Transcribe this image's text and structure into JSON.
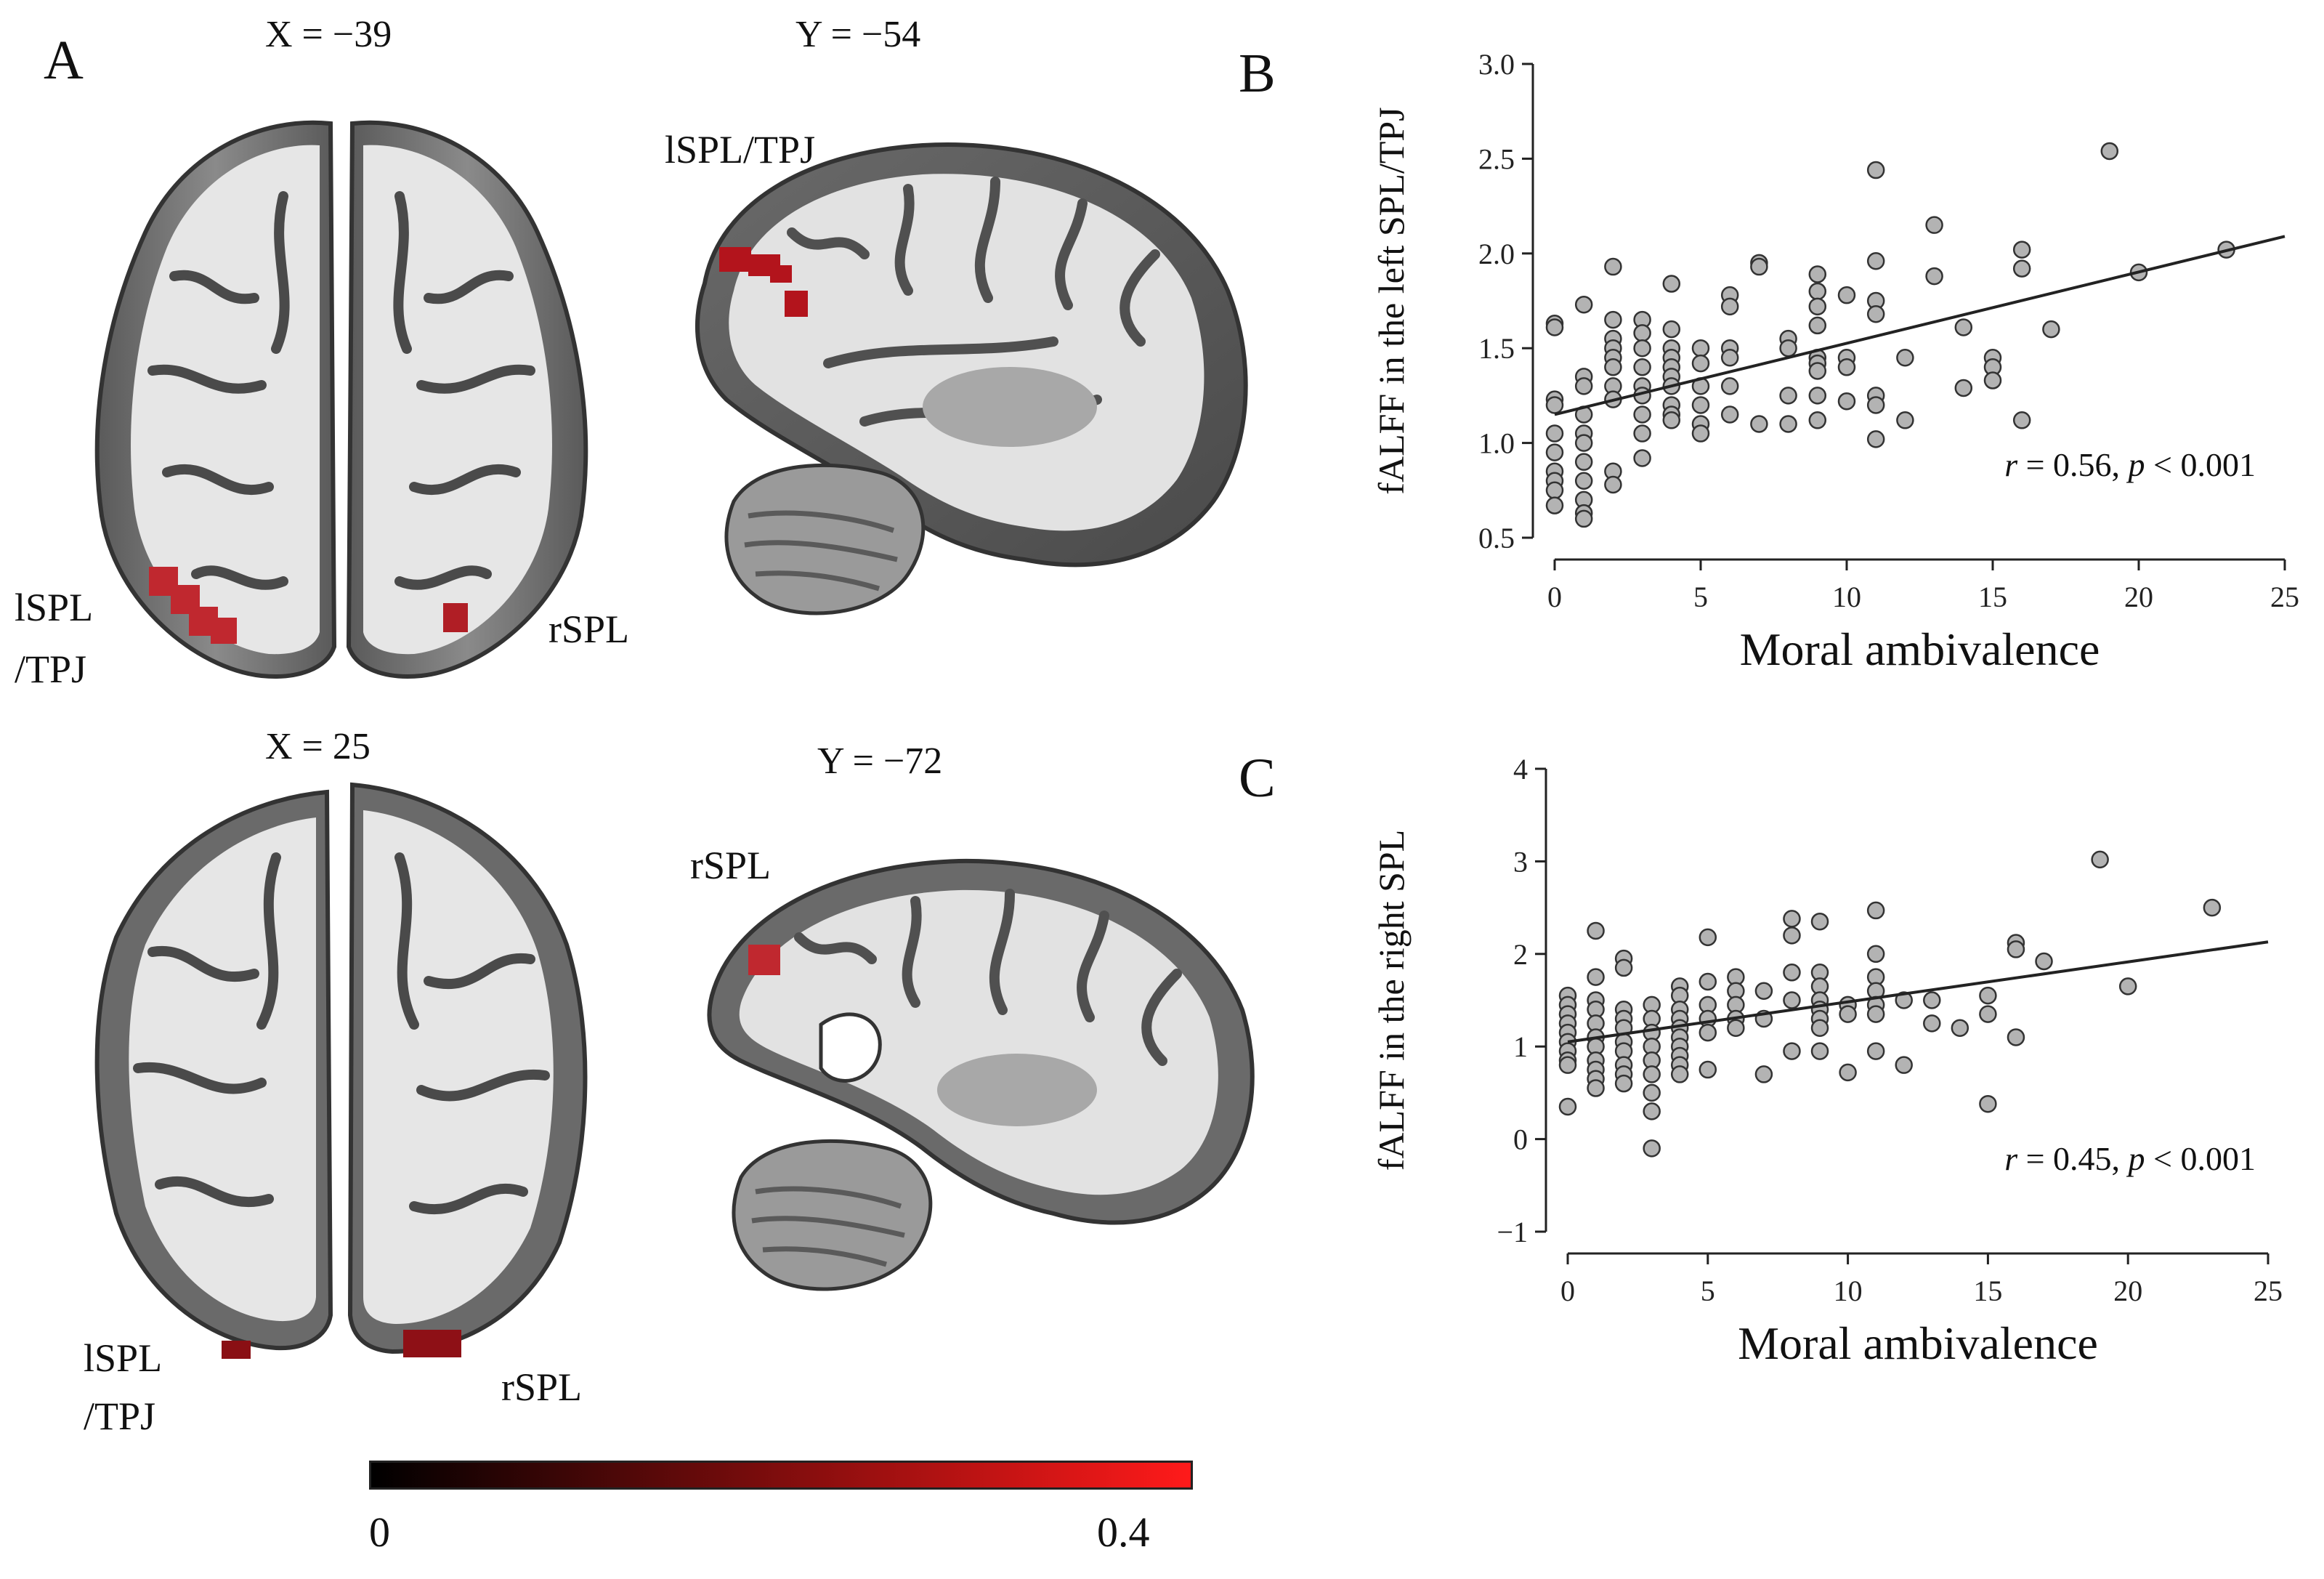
{
  "panels": {
    "a": {
      "letter": "A",
      "slices": {
        "top_left": "X = −39",
        "top_right": "Y = −54",
        "bottom_left": "X = 25",
        "bottom_right": "Y = −72"
      },
      "labels": {
        "lspl_tpj_top_axial_1": "lSPL",
        "lspl_tpj_top_axial_2": "/TPJ",
        "rspl_top_axial": "rSPL",
        "lspl_tpj_top_sagittal": "lSPL/TPJ",
        "rspl_bottom_sagittal": "rSPL",
        "lspl_tpj_bottom_axial_1": "lSPL",
        "lspl_tpj_bottom_axial_2": "/TPJ",
        "rspl_bottom_axial": "rSPL"
      },
      "colorbar": {
        "min": "0",
        "max": "0.4",
        "color_low": "#000000",
        "color_high": "#ff1a1a"
      }
    },
    "b": {
      "letter": "B"
    },
    "c": {
      "letter": "C"
    }
  },
  "chart_data": [
    {
      "type": "scatter",
      "panel": "B",
      "xlabel": "Moral ambivalence",
      "ylabel": "fALFF in the left SPL/TPJ",
      "xlim": [
        0,
        25
      ],
      "ylim": [
        0.5,
        3.0
      ],
      "xticks": [
        "0",
        "5",
        "10",
        "15",
        "20",
        "25"
      ],
      "yticks": [
        "0.5",
        "1.0",
        "1.5",
        "2.0",
        "2.5",
        "3.0"
      ],
      "annotation": {
        "r_symbol": "r",
        "r_text": " = 0.56, ",
        "p_symbol": "p",
        "p_text": " < 0.001"
      },
      "fit_line": {
        "x": [
          0,
          25
        ],
        "y": [
          1.15,
          2.09
        ]
      },
      "x": [
        0,
        0,
        0,
        0,
        0,
        0,
        0,
        0,
        0,
        0,
        1,
        1,
        1,
        1,
        1,
        1,
        1,
        1,
        1,
        1,
        1,
        2,
        2,
        2,
        2,
        2,
        2,
        2,
        2,
        2,
        2,
        3,
        3,
        3,
        3,
        3,
        3,
        3,
        3,
        3,
        4,
        4,
        4,
        4,
        4,
        4,
        4,
        4,
        4,
        4,
        5,
        5,
        5,
        5,
        5,
        5,
        6,
        6,
        6,
        6,
        6,
        6,
        7,
        7,
        7,
        8,
        8,
        8,
        8,
        9,
        9,
        9,
        9,
        9,
        9,
        9,
        9,
        9,
        10,
        10,
        10,
        10,
        11,
        11,
        11,
        11,
        11,
        11,
        11,
        12,
        12,
        13,
        13,
        14,
        14,
        15,
        15,
        15,
        16,
        16,
        16,
        17,
        19,
        20,
        23
      ],
      "y": [
        1.63,
        1.61,
        1.23,
        1.2,
        1.05,
        0.95,
        0.85,
        0.8,
        0.75,
        0.67,
        1.73,
        1.35,
        1.3,
        1.15,
        1.05,
        1.0,
        0.9,
        0.8,
        0.7,
        0.63,
        0.6,
        1.93,
        1.65,
        1.55,
        1.5,
        1.45,
        1.4,
        1.3,
        1.23,
        0.85,
        0.78,
        1.65,
        1.58,
        1.5,
        1.4,
        1.3,
        1.25,
        1.15,
        1.05,
        0.92,
        1.84,
        1.6,
        1.5,
        1.45,
        1.4,
        1.35,
        1.3,
        1.2,
        1.15,
        1.12,
        1.5,
        1.42,
        1.3,
        1.2,
        1.1,
        1.05,
        1.78,
        1.72,
        1.5,
        1.45,
        1.3,
        1.15,
        1.95,
        1.93,
        1.1,
        1.55,
        1.5,
        1.25,
        1.1,
        1.89,
        1.8,
        1.72,
        1.62,
        1.45,
        1.42,
        1.38,
        1.25,
        1.12,
        1.78,
        1.45,
        1.4,
        1.22,
        2.44,
        1.96,
        1.75,
        1.68,
        1.25,
        1.2,
        1.02,
        1.45,
        1.12,
        2.15,
        1.88,
        1.61,
        1.29,
        1.45,
        1.4,
        1.33,
        2.02,
        1.92,
        1.12,
        1.6,
        2.54,
        1.9,
        2.02
      ]
    },
    {
      "type": "scatter",
      "panel": "C",
      "xlabel": "Moral ambivalence",
      "ylabel": "fALFF in the right SPL",
      "xlim": [
        0,
        25
      ],
      "ylim": [
        -1,
        4
      ],
      "xticks": [
        "0",
        "5",
        "10",
        "15",
        "20",
        "25"
      ],
      "yticks": [
        "−1",
        "0",
        "1",
        "2",
        "3",
        "4"
      ],
      "annotation": {
        "r_symbol": "r",
        "r_text": " = 0.45, ",
        "p_symbol": "p",
        "p_text": " < 0.001"
      },
      "fit_line": {
        "x": [
          0,
          25
        ],
        "y": [
          1.05,
          2.13
        ]
      },
      "x": [
        0,
        0,
        0,
        0,
        0,
        0,
        0,
        0,
        0,
        0,
        1,
        1,
        1,
        1,
        1,
        1,
        1,
        1,
        1,
        1,
        1,
        2,
        2,
        2,
        2,
        2,
        2,
        2,
        2,
        2,
        2,
        3,
        3,
        3,
        3,
        3,
        3,
        3,
        3,
        3,
        4,
        4,
        4,
        4,
        4,
        4,
        4,
        4,
        4,
        4,
        5,
        5,
        5,
        5,
        5,
        5,
        6,
        6,
        6,
        6,
        6,
        7,
        7,
        7,
        8,
        8,
        8,
        8,
        8,
        9,
        9,
        9,
        9,
        9,
        9,
        9,
        9,
        10,
        10,
        10,
        11,
        11,
        11,
        11,
        11,
        11,
        11,
        12,
        12,
        13,
        13,
        14,
        15,
        15,
        15,
        16,
        16,
        16,
        17,
        19,
        20,
        23
      ],
      "y": [
        1.55,
        1.45,
        1.35,
        1.25,
        1.15,
        1.05,
        0.95,
        0.85,
        0.8,
        0.35,
        2.25,
        1.75,
        1.5,
        1.4,
        1.25,
        1.1,
        1.0,
        0.85,
        0.75,
        0.65,
        0.55,
        1.95,
        1.85,
        1.4,
        1.3,
        1.2,
        1.05,
        0.95,
        0.8,
        0.7,
        0.6,
        1.45,
        1.3,
        1.15,
        1.0,
        0.85,
        0.7,
        0.5,
        0.3,
        -0.1,
        1.65,
        1.55,
        1.4,
        1.3,
        1.2,
        1.1,
        1.0,
        0.9,
        0.8,
        0.7,
        2.18,
        1.7,
        1.45,
        1.3,
        1.15,
        0.75,
        1.75,
        1.6,
        1.45,
        1.3,
        1.2,
        1.6,
        1.3,
        0.7,
        2.38,
        2.2,
        1.8,
        1.5,
        0.95,
        2.35,
        1.8,
        1.65,
        1.5,
        1.4,
        1.3,
        1.2,
        0.95,
        1.45,
        1.35,
        0.72,
        2.47,
        2.0,
        1.75,
        1.6,
        1.45,
        1.35,
        0.95,
        1.5,
        0.8,
        1.5,
        1.25,
        1.2,
        1.55,
        1.35,
        0.38,
        2.12,
        2.05,
        1.1,
        1.92,
        3.02,
        1.65,
        2.5
      ]
    }
  ]
}
